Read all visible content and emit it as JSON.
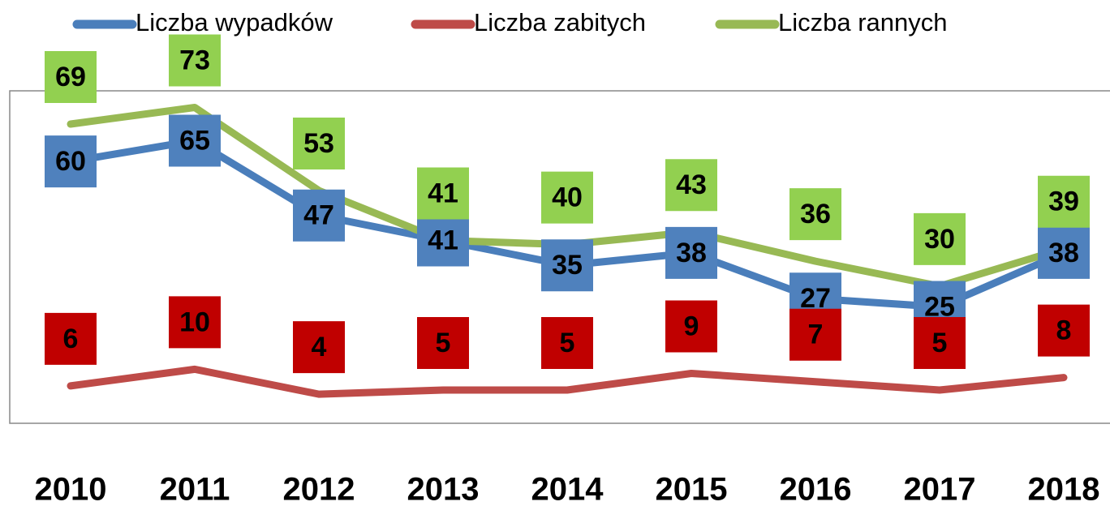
{
  "chart_data": {
    "type": "line",
    "categories": [
      "2010",
      "2011",
      "2012",
      "2013",
      "2014",
      "2015",
      "2016",
      "2017",
      "2018"
    ],
    "series": [
      {
        "name": "Liczba wypadków",
        "color": "#4a7ebb",
        "label_color": "#4f81bd",
        "values": [
          60,
          65,
          47,
          41,
          35,
          38,
          27,
          25,
          38
        ]
      },
      {
        "name": "Liczba zabitych",
        "color": "#be4b48",
        "label_color": "#c00000",
        "values": [
          6,
          10,
          4,
          5,
          5,
          9,
          7,
          5,
          8
        ]
      },
      {
        "name": "Liczba rannych",
        "color": "#98b954",
        "label_color": "#92d050",
        "values": [
          69,
          73,
          53,
          41,
          40,
          43,
          36,
          30,
          39
        ]
      }
    ],
    "ylim": [
      -3,
      77
    ],
    "legend": "top"
  }
}
